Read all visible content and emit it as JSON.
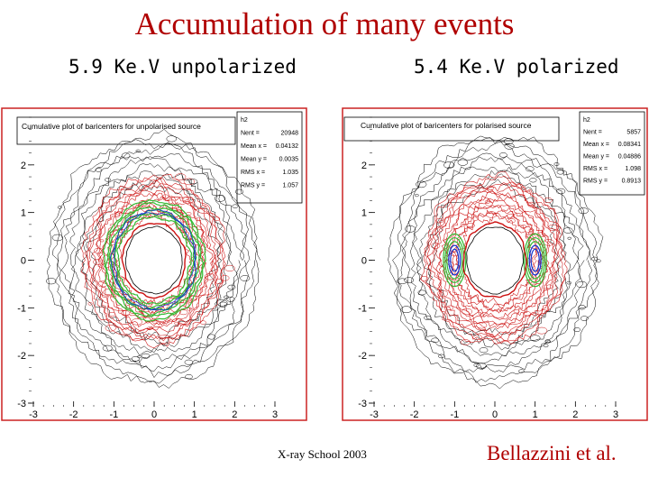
{
  "slide": {
    "title": "Accumulation of many events",
    "subtitle_left": "5.9 Ke.V unpolarized",
    "subtitle_right": "5.4 Ke.V polarized",
    "footer_left": "X-ray School 2003",
    "footer_right": "Bellazzini et al."
  },
  "colors": {
    "title": "#b00000",
    "footer_right": "#b00000",
    "frame": "#cc2222",
    "contour_outer": "#000000",
    "contour_mid": "#cc1111",
    "contour_inner": "#33bb33",
    "contour_core": "#1133cc"
  },
  "chart_data": [
    {
      "type": "heatmap",
      "title": "Cumulative plot of baricenters for unpolarised source",
      "xlim": [
        -3,
        3
      ],
      "ylim": [
        -3,
        3
      ],
      "x_ticks": [
        "-3",
        "-2",
        "-1",
        "0",
        "1",
        "2",
        "3"
      ],
      "y_ticks": [
        "-3",
        "-2",
        "-1",
        "0",
        "1",
        "2"
      ],
      "stats": [
        {
          "label": "h2",
          "value": ""
        },
        {
          "label": "Nent",
          "value": "20948"
        },
        {
          "label": "Mean x",
          "value": "0.04132"
        },
        {
          "label": "Mean y",
          "value": "0.0035"
        },
        {
          "label": "RMS x",
          "value": "1.035"
        },
        {
          "label": "RMS y",
          "value": "1.057"
        }
      ],
      "distribution": "ring",
      "ring_inner_radius": 0.7,
      "ring_peak_radius": 1.0,
      "ring_outer_radius": 2.6,
      "concentration": "uniform in azimuth"
    },
    {
      "type": "heatmap",
      "title": "Cumulative plot of baricenters for polarised source",
      "xlim": [
        -3,
        3
      ],
      "ylim": [
        -3,
        3
      ],
      "x_ticks": [
        "-3",
        "-2",
        "-1",
        "0",
        "1",
        "2",
        "3"
      ],
      "y_ticks": [
        "-3",
        "-2",
        "-1",
        "0",
        "1",
        "2"
      ],
      "stats": [
        {
          "label": "h2",
          "value": ""
        },
        {
          "label": "Nent",
          "value": "5857"
        },
        {
          "label": "Mean x",
          "value": "0.08341"
        },
        {
          "label": "Mean y",
          "value": "0.04886"
        },
        {
          "label": "RMS x",
          "value": "1.098"
        },
        {
          "label": "RMS y",
          "value": "0.8913"
        }
      ],
      "distribution": "ring",
      "ring_inner_radius": 0.7,
      "ring_peak_radius": 1.0,
      "ring_outer_radius": 2.6,
      "concentration": "left and right lobes (horizontal)"
    }
  ]
}
